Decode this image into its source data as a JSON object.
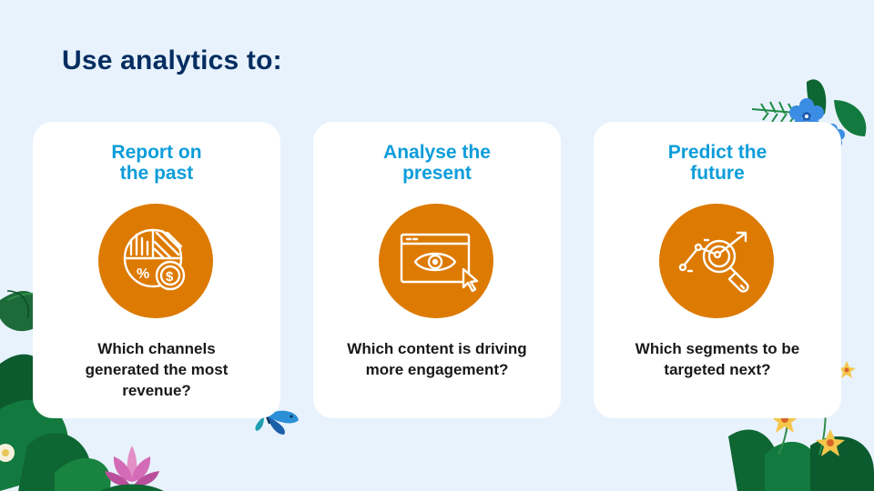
{
  "slide": {
    "title": "Use analytics to:"
  },
  "cards": [
    {
      "title_lines": [
        "Report on",
        "the past"
      ],
      "icon": "pie-chart-dollar-icon",
      "desc_lines": [
        "Which channels",
        "generated the most",
        "revenue?"
      ]
    },
    {
      "title_lines": [
        "Analyse the",
        "present"
      ],
      "icon": "eye-browser-icon",
      "desc_lines": [
        "Which content is driving",
        "more engagement?"
      ]
    },
    {
      "title_lines": [
        "Predict the",
        "future"
      ],
      "icon": "trend-magnifier-icon",
      "desc_lines": [
        "Which segments to be",
        "targeted next?"
      ]
    }
  ],
  "colors": {
    "background": "#e8f2fc",
    "title": "#032d60",
    "card_heading": "#0d9dda",
    "icon_circle": "#dd7a01",
    "body_text": "#181818"
  }
}
